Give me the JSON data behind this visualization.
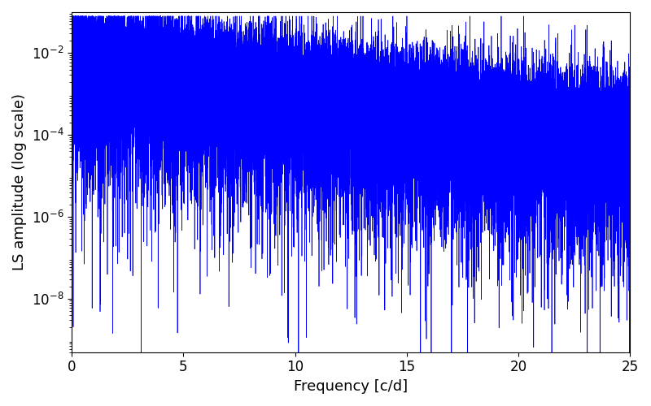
{
  "xlabel": "Frequency [c/d]",
  "ylabel": "LS amplitude (log scale)",
  "xlim": [
    0,
    25
  ],
  "ylim": [
    5e-10,
    0.1
  ],
  "line_color": "#0000ff",
  "line_width": 0.5,
  "figsize": [
    8.0,
    5.0
  ],
  "dpi": 100,
  "freq_max": 25.0,
  "n_points": 50000,
  "seed": 1234,
  "background_color": "#ffffff",
  "tick_label_size": 12,
  "axis_label_size": 13,
  "envelope_peak": 0.02,
  "envelope_decay": 0.18,
  "noise_floor_log": -4.3,
  "spike_depth": 3.5
}
